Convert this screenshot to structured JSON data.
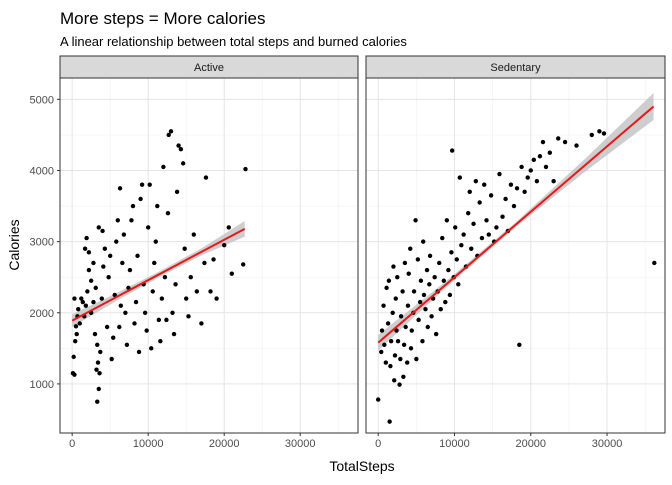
{
  "chart_data": {
    "type": "scatter",
    "title": "More steps = More calories",
    "subtitle": "A linear relationship between total steps and burned calories",
    "xlabel": "TotalSteps",
    "ylabel": "Calories",
    "xlim": [
      0,
      36000
    ],
    "ylim": [
      500,
      5000
    ],
    "x_ticks": [
      "0",
      "10000",
      "20000",
      "30000"
    ],
    "x_tick_values": [
      0,
      10000,
      20000,
      30000
    ],
    "y_ticks": [
      "1000",
      "2000",
      "3000",
      "4000",
      "5000"
    ],
    "y_tick_values": [
      1000,
      2000,
      3000,
      4000,
      5000
    ],
    "grid": true,
    "point_color": "#000000",
    "fit_color": "#e31a1c",
    "band_color": "#bdbdbd",
    "strip_fill": "#d9d9d9",
    "panels": [
      {
        "label": "Active",
        "fit": {
          "x": [
            0,
            22700
          ],
          "y": [
            1890,
            3180
          ]
        },
        "band_halfwidth": [
          90,
          55,
          40,
          50,
          110
        ],
        "points": [
          [
            100,
            1150
          ],
          [
            300,
            1130
          ],
          [
            200,
            1380
          ],
          [
            400,
            1600
          ],
          [
            500,
            1810
          ],
          [
            700,
            1950
          ],
          [
            300,
            2200
          ],
          [
            600,
            1700
          ],
          [
            800,
            2050
          ],
          [
            1000,
            1850
          ],
          [
            1200,
            2200
          ],
          [
            1400,
            2150
          ],
          [
            1600,
            1950
          ],
          [
            1800,
            2100
          ],
          [
            2000,
            2300
          ],
          [
            1700,
            2900
          ],
          [
            1900,
            3050
          ],
          [
            2200,
            2850
          ],
          [
            2500,
            2450
          ],
          [
            2800,
            2700
          ],
          [
            2200,
            2600
          ],
          [
            2500,
            2000
          ],
          [
            2800,
            2150
          ],
          [
            3000,
            1700
          ],
          [
            3100,
            2350
          ],
          [
            3300,
            1550
          ],
          [
            3400,
            1300
          ],
          [
            3200,
            1200
          ],
          [
            3300,
            750
          ],
          [
            3500,
            930
          ],
          [
            3600,
            1150
          ],
          [
            3700,
            1450
          ],
          [
            3900,
            2200
          ],
          [
            4100,
            2650
          ],
          [
            4300,
            2900
          ],
          [
            4000,
            3150
          ],
          [
            3500,
            3200
          ],
          [
            4600,
            1800
          ],
          [
            4800,
            2500
          ],
          [
            5000,
            2800
          ],
          [
            5200,
            1350
          ],
          [
            5400,
            1650
          ],
          [
            5600,
            2250
          ],
          [
            5800,
            3000
          ],
          [
            6000,
            3300
          ],
          [
            6200,
            1800
          ],
          [
            6400,
            2100
          ],
          [
            6600,
            2700
          ],
          [
            6800,
            3100
          ],
          [
            6300,
            3750
          ],
          [
            7000,
            2000
          ],
          [
            7200,
            1550
          ],
          [
            7400,
            2350
          ],
          [
            7600,
            2600
          ],
          [
            7800,
            3300
          ],
          [
            8000,
            3500
          ],
          [
            8200,
            1850
          ],
          [
            8400,
            2150
          ],
          [
            8600,
            2800
          ],
          [
            8800,
            1450
          ],
          [
            9000,
            3600
          ],
          [
            9200,
            3800
          ],
          [
            9400,
            2400
          ],
          [
            9600,
            2000
          ],
          [
            9800,
            1750
          ],
          [
            10000,
            3200
          ],
          [
            10200,
            3800
          ],
          [
            10400,
            1500
          ],
          [
            10600,
            2300
          ],
          [
            10800,
            2700
          ],
          [
            11000,
            3000
          ],
          [
            11200,
            3500
          ],
          [
            11400,
            1900
          ],
          [
            11600,
            1600
          ],
          [
            11800,
            2200
          ],
          [
            12000,
            4050
          ],
          [
            12200,
            2500
          ],
          [
            12400,
            1900
          ],
          [
            12600,
            3400
          ],
          [
            12700,
            4500
          ],
          [
            13000,
            4550
          ],
          [
            13200,
            2000
          ],
          [
            13400,
            1700
          ],
          [
            13600,
            2400
          ],
          [
            13800,
            3700
          ],
          [
            14000,
            4350
          ],
          [
            14300,
            4300
          ],
          [
            14600,
            4100
          ],
          [
            14800,
            2900
          ],
          [
            15000,
            2200
          ],
          [
            15300,
            1950
          ],
          [
            15600,
            2500
          ],
          [
            16000,
            3100
          ],
          [
            16400,
            2300
          ],
          [
            17000,
            1850
          ],
          [
            17400,
            2700
          ],
          [
            17600,
            3900
          ],
          [
            18200,
            2300
          ],
          [
            18600,
            2750
          ],
          [
            19000,
            2200
          ],
          [
            20000,
            2950
          ],
          [
            20600,
            3200
          ],
          [
            21000,
            2550
          ],
          [
            22500,
            2680
          ],
          [
            22800,
            4020
          ]
        ]
      },
      {
        "label": "Sedentary",
        "fit": {
          "x": [
            0,
            36100
          ],
          "y": [
            1580,
            4900
          ]
        },
        "band_halfwidth": [
          110,
          45,
          35,
          90,
          190
        ],
        "points": [
          [
            0,
            780
          ],
          [
            400,
            1450
          ],
          [
            500,
            1750
          ],
          [
            700,
            2100
          ],
          [
            800,
            1550
          ],
          [
            1000,
            1300
          ],
          [
            1100,
            2350
          ],
          [
            1300,
            1850
          ],
          [
            1400,
            2450
          ],
          [
            1500,
            470
          ],
          [
            1600,
            1250
          ],
          [
            1700,
            1600
          ],
          [
            1900,
            2000
          ],
          [
            2000,
            2650
          ],
          [
            2100,
            1050
          ],
          [
            2200,
            1400
          ],
          [
            2300,
            2200
          ],
          [
            2400,
            1750
          ],
          [
            2500,
            2500
          ],
          [
            2600,
            1600
          ],
          [
            2800,
            990
          ],
          [
            2900,
            1350
          ],
          [
            3000,
            1950
          ],
          [
            3200,
            2300
          ],
          [
            3300,
            1100
          ],
          [
            3400,
            1550
          ],
          [
            3500,
            2700
          ],
          [
            3600,
            1800
          ],
          [
            3800,
            1300
          ],
          [
            3900,
            2100
          ],
          [
            4000,
            2550
          ],
          [
            4200,
            2900
          ],
          [
            4300,
            1500
          ],
          [
            4400,
            1750
          ],
          [
            4600,
            2000
          ],
          [
            4700,
            2300
          ],
          [
            4900,
            3300
          ],
          [
            5000,
            1350
          ],
          [
            5200,
            2750
          ],
          [
            5300,
            1900
          ],
          [
            5500,
            2150
          ],
          [
            5600,
            2450
          ],
          [
            5800,
            1600
          ],
          [
            5900,
            3000
          ],
          [
            6000,
            2250
          ],
          [
            6200,
            2050
          ],
          [
            6400,
            2600
          ],
          [
            6500,
            1800
          ],
          [
            6700,
            2400
          ],
          [
            6800,
            2800
          ],
          [
            7000,
            1950
          ],
          [
            7200,
            2200
          ],
          [
            7400,
            2500
          ],
          [
            7600,
            1700
          ],
          [
            7800,
            2300
          ],
          [
            8000,
            2700
          ],
          [
            8200,
            2050
          ],
          [
            8400,
            3050
          ],
          [
            8600,
            2450
          ],
          [
            8800,
            2150
          ],
          [
            9000,
            3300
          ],
          [
            9200,
            2600
          ],
          [
            9400,
            2250
          ],
          [
            9600,
            2850
          ],
          [
            9700,
            4280
          ],
          [
            9900,
            2500
          ],
          [
            10100,
            3200
          ],
          [
            10300,
            2750
          ],
          [
            10500,
            2400
          ],
          [
            10700,
            3900
          ],
          [
            10900,
            2950
          ],
          [
            11200,
            3100
          ],
          [
            11500,
            2650
          ],
          [
            11800,
            3400
          ],
          [
            12000,
            3700
          ],
          [
            12200,
            2900
          ],
          [
            12500,
            3250
          ],
          [
            12800,
            3850
          ],
          [
            13000,
            2800
          ],
          [
            13300,
            3550
          ],
          [
            13600,
            3050
          ],
          [
            13900,
            3800
          ],
          [
            14200,
            3300
          ],
          [
            14500,
            3100
          ],
          [
            14800,
            3650
          ],
          [
            15200,
            3000
          ],
          [
            15500,
            3200
          ],
          [
            15900,
            3950
          ],
          [
            16300,
            3350
          ],
          [
            16700,
            3600
          ],
          [
            17000,
            3150
          ],
          [
            17400,
            3800
          ],
          [
            17800,
            3500
          ],
          [
            18200,
            3750
          ],
          [
            18500,
            1550
          ],
          [
            18800,
            4050
          ],
          [
            19200,
            3700
          ],
          [
            19600,
            3900
          ],
          [
            20000,
            4000
          ],
          [
            20400,
            4150
          ],
          [
            20800,
            3850
          ],
          [
            21200,
            4200
          ],
          [
            21600,
            4400
          ],
          [
            22000,
            4050
          ],
          [
            22500,
            4250
          ],
          [
            23000,
            3850
          ],
          [
            23600,
            4450
          ],
          [
            24500,
            4400
          ],
          [
            26000,
            4350
          ],
          [
            28000,
            4500
          ],
          [
            29000,
            4550
          ],
          [
            29600,
            4520
          ],
          [
            36200,
            2700
          ]
        ]
      }
    ]
  }
}
